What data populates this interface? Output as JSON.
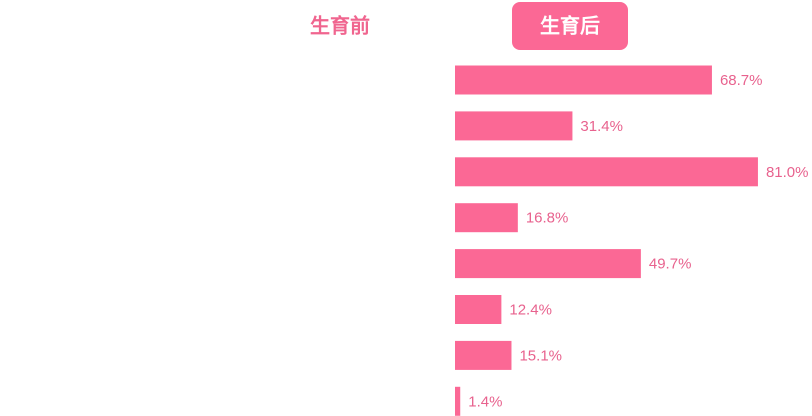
{
  "tabs": [
    {
      "label": "生育前"
    },
    {
      "label": "生育后"
    }
  ],
  "active_tab": 1,
  "chart_data": {
    "type": "hbar",
    "color": "#fb6895",
    "values": [
      68.7,
      31.4,
      81.0,
      16.8,
      49.7,
      12.4,
      15.1,
      1.4
    ],
    "value_labels": [
      "68.7%",
      "31.4%",
      "81.0%",
      "16.8%",
      "49.7%",
      "12.4%",
      "15.1%",
      "1.4%"
    ]
  }
}
